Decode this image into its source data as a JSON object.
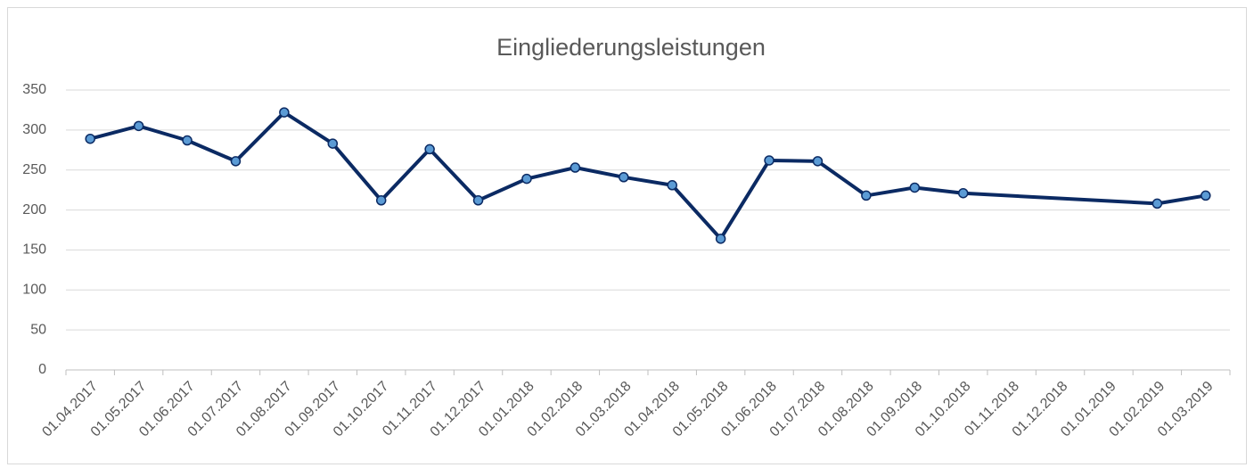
{
  "chart_data": {
    "type": "line",
    "title": "Eingliederungsleistungen",
    "categories": [
      "01.04.2017",
      "01.05.2017",
      "01.06.2017",
      "01.07.2017",
      "01.08.2017",
      "01.09.2017",
      "01.10.2017",
      "01.11.2017",
      "01.12.2017",
      "01.01.2018",
      "01.02.2018",
      "01.03.2018",
      "01.04.2018",
      "01.05.2018",
      "01.06.2018",
      "01.07.2018",
      "01.08.2018",
      "01.09.2018",
      "01.10.2018",
      "01.11.2018",
      "01.12.2018",
      "01.01.2019",
      "01.02.2019",
      "01.03.2019"
    ],
    "series": [
      {
        "name": "Eingliederungsleistungen",
        "color": "#0b2a63",
        "marker_color": "#5b9bd5",
        "values": [
          289,
          305,
          287,
          261,
          322,
          283,
          212,
          276,
          212,
          239,
          253,
          241,
          231,
          164,
          262,
          261,
          218,
          228,
          221,
          null,
          null,
          null,
          208,
          218
        ]
      }
    ],
    "ylim": [
      0,
      350
    ],
    "yticks": [
      0,
      50,
      100,
      150,
      200,
      250,
      300,
      350
    ],
    "grid": true,
    "span_gaps": true,
    "legend": false
  }
}
